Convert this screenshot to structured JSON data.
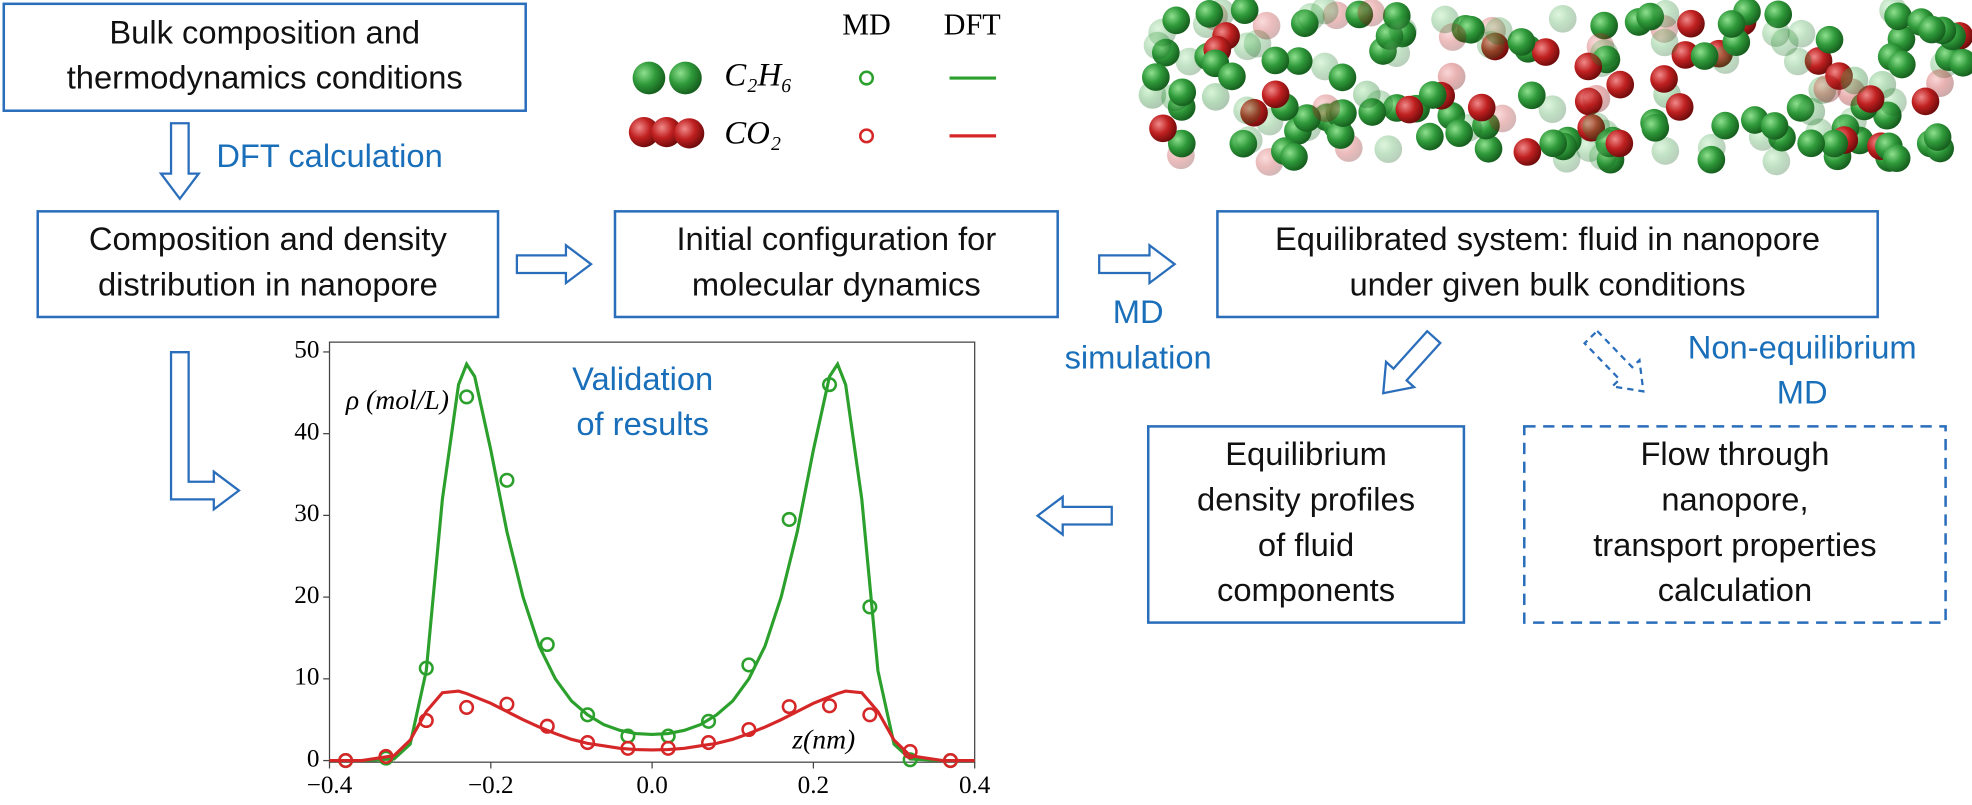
{
  "boxes": [
    {
      "lines": [
        "Bulk composition and",
        "thermodynamics conditions"
      ]
    },
    {
      "lines": [
        "Composition and density",
        "distribution in nanopore"
      ]
    },
    {
      "lines": [
        "Initial configuration for",
        "molecular dynamics"
      ]
    },
    {
      "lines": [
        "Equilibrated system: fluid in nanopore",
        "under given bulk conditions"
      ]
    },
    {
      "lines": [
        "Equilibrium",
        "density profiles",
        "of fluid",
        "components"
      ]
    },
    {
      "lines": [
        "Flow through",
        "nanopore,",
        "transport properties",
        "calculation"
      ]
    }
  ],
  "labels": {
    "dft_calculation": [
      "DFT calculation"
    ],
    "md_simulation": [
      "MD",
      "simulation"
    ],
    "non_equilibrium_md": [
      "Non-equilibrium",
      "MD"
    ],
    "validation": [
      "Validation",
      "of results"
    ]
  },
  "chart_data": {
    "type": "line",
    "xlabel": "z(nm)",
    "ylabel": "ρ (mol/L)",
    "legend_columns": [
      "MD",
      "DFT"
    ],
    "xlim": [
      -0.4,
      0.4
    ],
    "ylim": [
      -0.2,
      51.2
    ],
    "xticks": [
      {
        "value": -0.4,
        "label": "−0.4"
      },
      {
        "value": -0.2,
        "label": "−0.2"
      },
      {
        "value": 0,
        "label": "0.0"
      },
      0.2,
      0.4
    ],
    "yticks": [
      0,
      10,
      20,
      30,
      40,
      50
    ],
    "md_x": [
      -0.38,
      -0.33,
      -0.28,
      -0.23,
      -0.18,
      -0.13,
      -0.08,
      -0.03,
      0.02,
      0.07,
      0.12,
      0.17,
      0.22,
      0.27,
      0.32,
      0.37
    ],
    "dft_x": [
      -0.4,
      -0.36,
      -0.32,
      -0.3,
      -0.28,
      -0.26,
      -0.24,
      -0.23,
      -0.22,
      -0.2,
      -0.18,
      -0.16,
      -0.14,
      -0.12,
      -0.1,
      -0.08,
      -0.06,
      -0.04,
      -0.02,
      0,
      0.02,
      0.04,
      0.06,
      0.08,
      0.1,
      0.12,
      0.14,
      0.16,
      0.18,
      0.2,
      0.22,
      0.23,
      0.24,
      0.26,
      0.28,
      0.3,
      0.32,
      0.36,
      0.4
    ],
    "series": [
      {
        "name": "C₂H₆",
        "color": "#2ca02c",
        "md_values": [
          0,
          0.3,
          11.3,
          44.5,
          34.3,
          14.2,
          5.6,
          3,
          3,
          4.8,
          11.7,
          29.5,
          46,
          18.8,
          0.1,
          0
        ],
        "dft_values": [
          0,
          0,
          0.2,
          2,
          11,
          32,
          46,
          48.5,
          47,
          38,
          28,
          20,
          14,
          10,
          7.3,
          5.6,
          4.4,
          3.7,
          3.3,
          3.2,
          3.3,
          3.7,
          4.4,
          5.6,
          7.3,
          10,
          14,
          20,
          28,
          38,
          47,
          48.5,
          46,
          32,
          11,
          2,
          0.2,
          0,
          0
        ]
      },
      {
        "name": "CO₂",
        "color": "#d62728",
        "md_values": [
          0,
          0.5,
          4.9,
          6.5,
          6.9,
          4.2,
          2.2,
          1.5,
          1.5,
          2.2,
          3.8,
          6.6,
          6.7,
          5.6,
          1.1,
          0
        ],
        "dft_values": [
          0,
          0,
          0.6,
          2.5,
          6,
          8.3,
          8.5,
          8.2,
          7.8,
          7,
          6,
          5,
          4.1,
          3.3,
          2.6,
          2.1,
          1.8,
          1.5,
          1.35,
          1.3,
          1.35,
          1.5,
          1.8,
          2.1,
          2.6,
          3.3,
          4.1,
          5,
          6,
          7,
          7.8,
          8.2,
          8.5,
          8.3,
          6,
          2.5,
          0.6,
          0,
          0
        ]
      }
    ]
  }
}
